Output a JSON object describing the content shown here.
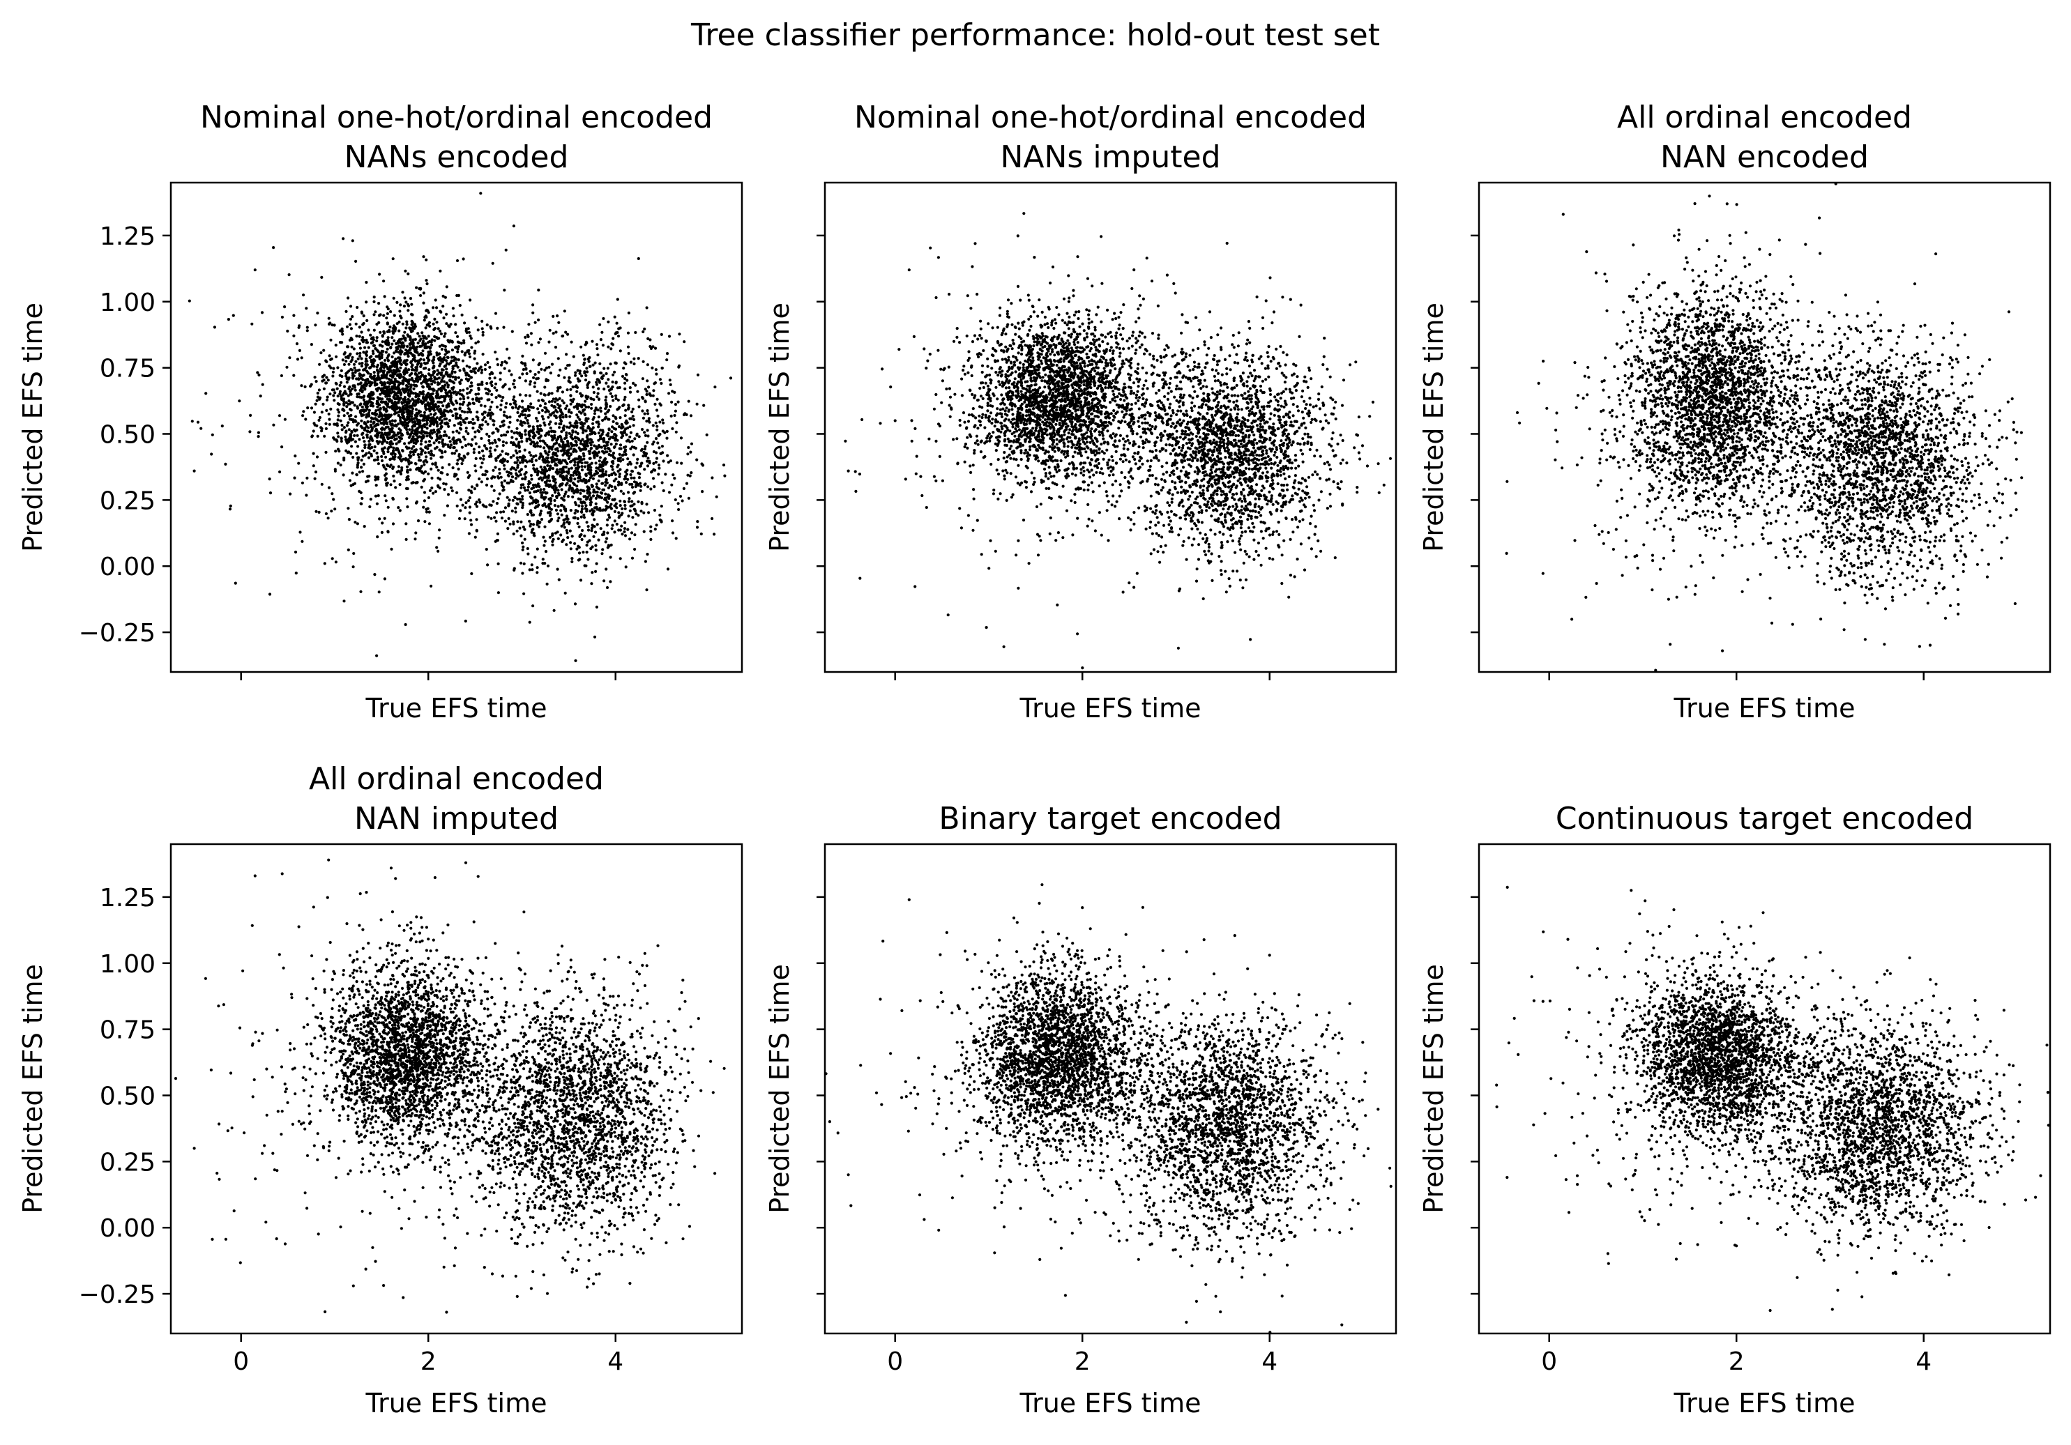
{
  "figure": {
    "title": "Tree classifier performance: hold-out test set"
  },
  "chart_data": [
    {
      "type": "scatter",
      "title": [
        "Nominal one-hot/ordinal encoded",
        "NANs encoded"
      ],
      "xlabel": "True EFS time",
      "ylabel": "Predicted EFS time",
      "xlim": [
        -0.75,
        5.35
      ],
      "ylim": [
        -0.4,
        1.45
      ],
      "xticks": [
        0,
        2,
        4
      ],
      "yticks": [
        -0.25,
        0,
        0.25,
        0.5,
        0.75,
        1.0,
        1.25
      ],
      "show_xticklabels": false,
      "show_yticklabels": true,
      "clusters": [
        {
          "cx": 1.75,
          "cy": 0.64,
          "sx": 0.42,
          "sy": 0.16,
          "n": 2300
        },
        {
          "cx": 3.55,
          "cy": 0.42,
          "sx": 0.55,
          "sy": 0.2,
          "n": 2200
        },
        {
          "cx": 1.6,
          "cy": 0.55,
          "sx": 0.9,
          "sy": 0.3,
          "n": 350
        }
      ],
      "outliers": [
        [
          -0.5,
          0.36
        ],
        [
          0.15,
          1.12
        ],
        [
          1.95,
          1.17
        ],
        [
          -0.2,
          0.53
        ],
        [
          0.1,
          0.57
        ],
        [
          2.75,
          -0.1
        ],
        [
          3.1,
          0.88
        ]
      ]
    },
    {
      "type": "scatter",
      "title": [
        "Nominal one-hot/ordinal encoded",
        "NANs imputed"
      ],
      "xlabel": "True EFS time",
      "ylabel": "Predicted EFS time",
      "xlim": [
        -0.75,
        5.35
      ],
      "ylim": [
        -0.4,
        1.45
      ],
      "xticks": [
        0,
        2,
        4
      ],
      "yticks": [
        -0.25,
        0,
        0.25,
        0.5,
        0.75,
        1.0,
        1.25
      ],
      "show_xticklabels": false,
      "show_yticklabels": false,
      "clusters": [
        {
          "cx": 1.75,
          "cy": 0.64,
          "sx": 0.42,
          "sy": 0.15,
          "n": 2300
        },
        {
          "cx": 3.55,
          "cy": 0.44,
          "sx": 0.55,
          "sy": 0.19,
          "n": 2200
        },
        {
          "cx": 1.6,
          "cy": 0.55,
          "sx": 0.9,
          "sy": 0.3,
          "n": 350
        }
      ],
      "outliers": [
        [
          -0.5,
          0.36
        ],
        [
          0.15,
          1.12
        ],
        [
          1.95,
          1.17
        ],
        [
          2.55,
          -0.08
        ],
        [
          0.0,
          0.55
        ]
      ]
    },
    {
      "type": "scatter",
      "title": [
        "All ordinal encoded",
        "NAN encoded"
      ],
      "xlabel": "True EFS time",
      "ylabel": "Predicted EFS time",
      "xlim": [
        -0.75,
        5.35
      ],
      "ylim": [
        -0.4,
        1.45
      ],
      "xticks": [
        0,
        2,
        4
      ],
      "yticks": [
        -0.25,
        0,
        0.25,
        0.5,
        0.75,
        1.0,
        1.25
      ],
      "show_xticklabels": false,
      "show_yticklabels": false,
      "clusters": [
        {
          "cx": 1.75,
          "cy": 0.62,
          "sx": 0.45,
          "sy": 0.2,
          "n": 2300
        },
        {
          "cx": 3.55,
          "cy": 0.4,
          "sx": 0.55,
          "sy": 0.22,
          "n": 2200
        },
        {
          "cx": 1.6,
          "cy": 0.55,
          "sx": 0.9,
          "sy": 0.33,
          "n": 350
        }
      ],
      "outliers": [
        [
          -0.45,
          0.32
        ],
        [
          0.15,
          1.33
        ],
        [
          1.9,
          1.37
        ],
        [
          1.85,
          -0.32
        ],
        [
          2.6,
          -0.22
        ],
        [
          3.15,
          -0.24
        ],
        [
          2.9,
          -0.2
        ]
      ]
    },
    {
      "type": "scatter",
      "title": [
        "All ordinal encoded",
        "NAN imputed"
      ],
      "xlabel": "True EFS time",
      "ylabel": "Predicted EFS time",
      "xlim": [
        -0.75,
        5.35
      ],
      "ylim": [
        -0.4,
        1.45
      ],
      "xticks": [
        0,
        2,
        4
      ],
      "yticks": [
        -0.25,
        0,
        0.25,
        0.5,
        0.75,
        1.0,
        1.25
      ],
      "show_xticklabels": true,
      "show_yticklabels": true,
      "clusters": [
        {
          "cx": 1.75,
          "cy": 0.65,
          "sx": 0.42,
          "sy": 0.17,
          "n": 2300
        },
        {
          "cx": 3.55,
          "cy": 0.42,
          "sx": 0.55,
          "sy": 0.22,
          "n": 2200
        },
        {
          "cx": 1.6,
          "cy": 0.55,
          "sx": 0.9,
          "sy": 0.33,
          "n": 350
        }
      ],
      "outliers": [
        [
          -0.5,
          0.3
        ],
        [
          0.15,
          1.33
        ],
        [
          1.65,
          1.32
        ],
        [
          1.2,
          -0.22
        ],
        [
          2.95,
          -0.26
        ],
        [
          3.1,
          -0.23
        ],
        [
          2.6,
          -0.15
        ]
      ]
    },
    {
      "type": "scatter",
      "title": [
        "Binary target encoded"
      ],
      "xlabel": "True EFS time",
      "ylabel": "Predicted EFS time",
      "xlim": [
        -0.75,
        5.35
      ],
      "ylim": [
        -0.4,
        1.45
      ],
      "xticks": [
        0,
        2,
        4
      ],
      "yticks": [
        -0.25,
        0,
        0.25,
        0.5,
        0.75,
        1.0,
        1.25
      ],
      "show_xticklabels": true,
      "show_yticklabels": false,
      "clusters": [
        {
          "cx": 1.75,
          "cy": 0.65,
          "sx": 0.42,
          "sy": 0.16,
          "n": 2300
        },
        {
          "cx": 3.55,
          "cy": 0.38,
          "sx": 0.55,
          "sy": 0.21,
          "n": 2200
        },
        {
          "cx": 1.6,
          "cy": 0.55,
          "sx": 0.9,
          "sy": 0.3,
          "n": 350
        }
      ],
      "outliers": [
        [
          -0.5,
          0.2
        ],
        [
          0.15,
          1.24
        ],
        [
          2.0,
          1.21
        ],
        [
          4.0,
          1.03
        ],
        [
          2.6,
          -0.12
        ]
      ]
    },
    {
      "type": "scatter",
      "title": [
        "Continuous target encoded"
      ],
      "xlabel": "True EFS time",
      "ylabel": "Predicted EFS time",
      "xlim": [
        -0.75,
        5.35
      ],
      "ylim": [
        -0.4,
        1.45
      ],
      "xticks": [
        0,
        2,
        4
      ],
      "yticks": [
        -0.25,
        0,
        0.25,
        0.5,
        0.75,
        1.0,
        1.25
      ],
      "show_xticklabels": true,
      "show_yticklabels": false,
      "clusters": [
        {
          "cx": 1.8,
          "cy": 0.65,
          "sx": 0.42,
          "sy": 0.15,
          "n": 2300
        },
        {
          "cx": 3.55,
          "cy": 0.38,
          "sx": 0.55,
          "sy": 0.2,
          "n": 2200
        },
        {
          "cx": 1.6,
          "cy": 0.55,
          "sx": 0.9,
          "sy": 0.3,
          "n": 350
        }
      ],
      "outliers": [
        [
          -0.45,
          0.19
        ],
        [
          0.2,
          1.09
        ],
        [
          2.0,
          1.04
        ],
        [
          3.85,
          1.02
        ],
        [
          1.4,
          -0.06
        ]
      ]
    }
  ]
}
